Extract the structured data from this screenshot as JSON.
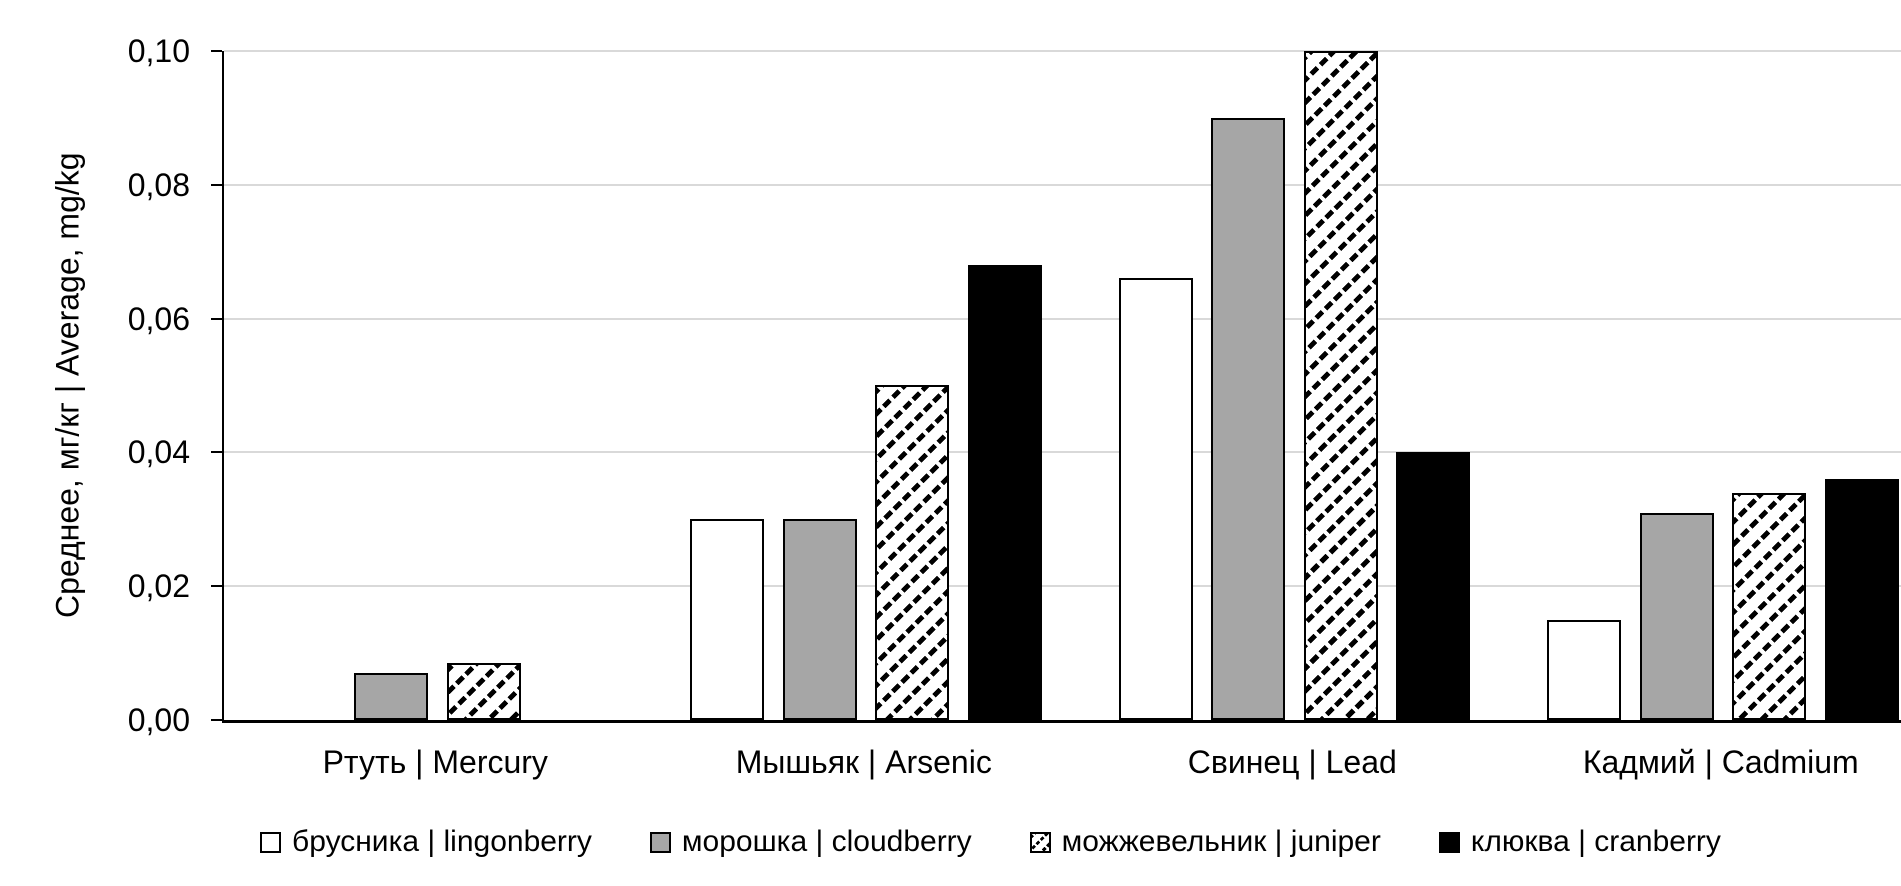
{
  "chart_data": {
    "type": "bar",
    "title": "",
    "xlabel": "",
    "ylabel": "Среднее, мг/кг | Average, mg/kg",
    "ylim": [
      0,
      0.1
    ],
    "ytick_step": 0.02,
    "ytick_labels": [
      "0,00",
      "0,02",
      "0,04",
      "0,06",
      "0,08",
      "0,10"
    ],
    "grid": true,
    "legend_position": "bottom",
    "categories": [
      "Ртуть | Mercury",
      "Мышьяк | Arsenic",
      "Свинец | Lead",
      "Кадмий | Cadmium"
    ],
    "series": [
      {
        "name": "брусника | lingonberry",
        "style": "white",
        "values": [
          0,
          0.03,
          0.066,
          0.015
        ]
      },
      {
        "name": "морошка | cloudberry",
        "style": "gray",
        "values": [
          0.007,
          0.03,
          0.09,
          0.031
        ]
      },
      {
        "name": "можжевельник | juniper",
        "style": "hatch",
        "values": [
          0.0085,
          0.05,
          0.1,
          0.034
        ]
      },
      {
        "name": "клюква | cranberry",
        "style": "black",
        "values": [
          0,
          0.068,
          0.04,
          0.036
        ]
      }
    ],
    "colors": {
      "white_fill": "#ffffff",
      "gray_fill": "#a6a6a6",
      "black_fill": "#000000",
      "bar_border": "#000000",
      "gridline": "#d9d9d9",
      "axis": "#000000",
      "text": "#000000",
      "background": "#ffffff"
    }
  }
}
